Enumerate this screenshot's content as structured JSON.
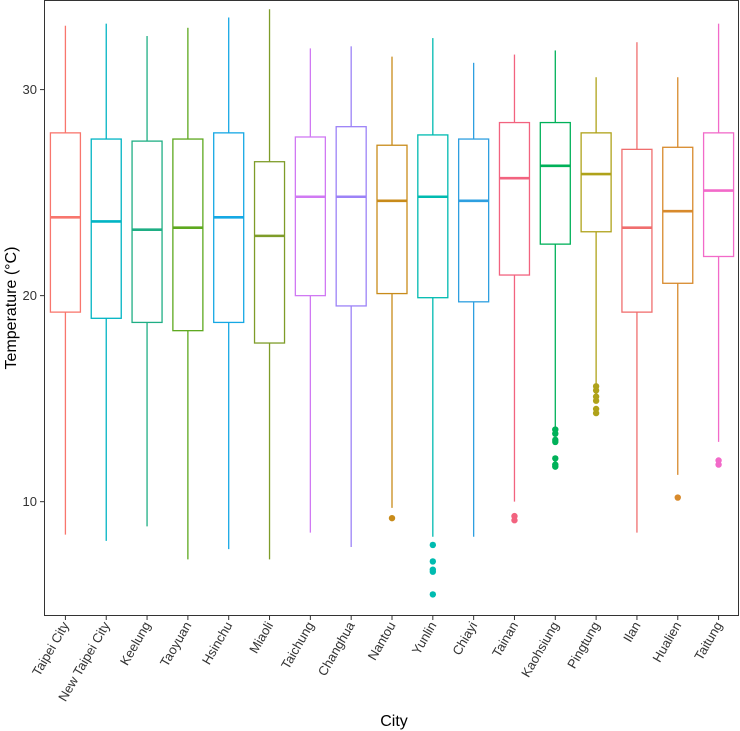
{
  "chart_data": {
    "type": "boxplot",
    "title": "",
    "xlabel": "City",
    "ylabel": "Temperature (°C)",
    "ylim": [
      4.5,
      34.3
    ],
    "yticks": [
      10,
      20,
      30
    ],
    "grid": false,
    "legend": "none",
    "series": [
      {
        "name": "Taipei City",
        "color": "#F8766D",
        "min": 8.4,
        "q1": 19.2,
        "median": 23.8,
        "q3": 27.9,
        "max": 33.1,
        "outliers": []
      },
      {
        "name": "New Taipei City",
        "color": "#00B4C4",
        "min": 8.1,
        "q1": 18.9,
        "median": 23.6,
        "q3": 27.6,
        "max": 33.2,
        "outliers": []
      },
      {
        "name": "Keelung",
        "color": "#1FAE84",
        "min": 8.8,
        "q1": 18.7,
        "median": 23.2,
        "q3": 27.5,
        "max": 32.6,
        "outliers": []
      },
      {
        "name": "Taoyuan",
        "color": "#5DA81E",
        "min": 7.2,
        "q1": 18.3,
        "median": 23.3,
        "q3": 27.6,
        "max": 33.0,
        "outliers": []
      },
      {
        "name": "Hsinchu",
        "color": "#15A8E4",
        "min": 7.7,
        "q1": 18.7,
        "median": 23.8,
        "q3": 27.9,
        "max": 33.5,
        "outliers": []
      },
      {
        "name": "Miaoli",
        "color": "#7E9C29",
        "min": 7.2,
        "q1": 17.7,
        "median": 22.9,
        "q3": 26.5,
        "max": 33.9,
        "outliers": []
      },
      {
        "name": "Taichung",
        "color": "#D079F3",
        "min": 8.5,
        "q1": 20.0,
        "median": 24.8,
        "q3": 27.7,
        "max": 32.0,
        "outliers": []
      },
      {
        "name": "Changhua",
        "color": "#9C82F7",
        "min": 7.8,
        "q1": 19.5,
        "median": 24.8,
        "q3": 28.2,
        "max": 32.1,
        "outliers": []
      },
      {
        "name": "Nantou",
        "color": "#C88B1A",
        "min": 9.7,
        "q1": 20.1,
        "median": 24.6,
        "q3": 27.3,
        "max": 31.6,
        "outliers": [
          9.2
        ]
      },
      {
        "name": "Yunlin",
        "color": "#00BBB0",
        "min": 8.3,
        "q1": 19.9,
        "median": 24.8,
        "q3": 27.8,
        "max": 32.5,
        "outliers": [
          7.9,
          7.1,
          6.7,
          6.6,
          5.5
        ]
      },
      {
        "name": "Chiayi",
        "color": "#2E9FE0",
        "min": 8.3,
        "q1": 19.7,
        "median": 24.6,
        "q3": 27.6,
        "max": 31.3,
        "outliers": []
      },
      {
        "name": "Tainan",
        "color": "#F2637F",
        "min": 10.0,
        "q1": 21.0,
        "median": 25.7,
        "q3": 28.4,
        "max": 31.7,
        "outliers": [
          9.3,
          9.1
        ]
      },
      {
        "name": "Kaohsiung",
        "color": "#00B159",
        "min": 13.6,
        "q1": 22.5,
        "median": 26.3,
        "q3": 28.4,
        "max": 31.9,
        "outliers": [
          13.5,
          13.3,
          13.0,
          12.9,
          12.1,
          11.8,
          11.7
        ]
      },
      {
        "name": "Pingtung",
        "color": "#AFA21A",
        "min": 15.7,
        "q1": 23.1,
        "median": 25.9,
        "q3": 27.9,
        "max": 30.6,
        "outliers": [
          15.6,
          15.4,
          15.1,
          14.9,
          14.5,
          14.3
        ]
      },
      {
        "name": "Ilan",
        "color": "#F06E6E",
        "min": 8.5,
        "q1": 19.2,
        "median": 23.3,
        "q3": 27.1,
        "max": 32.3,
        "outliers": []
      },
      {
        "name": "Hualien",
        "color": "#D88A2C",
        "min": 11.3,
        "q1": 20.6,
        "median": 24.1,
        "q3": 27.2,
        "max": 30.6,
        "outliers": [
          10.2
        ]
      },
      {
        "name": "Taitung",
        "color": "#F26AC9",
        "min": 12.9,
        "q1": 21.9,
        "median": 25.1,
        "q3": 27.9,
        "max": 33.2,
        "outliers": [
          12.0,
          11.8
        ]
      }
    ]
  }
}
